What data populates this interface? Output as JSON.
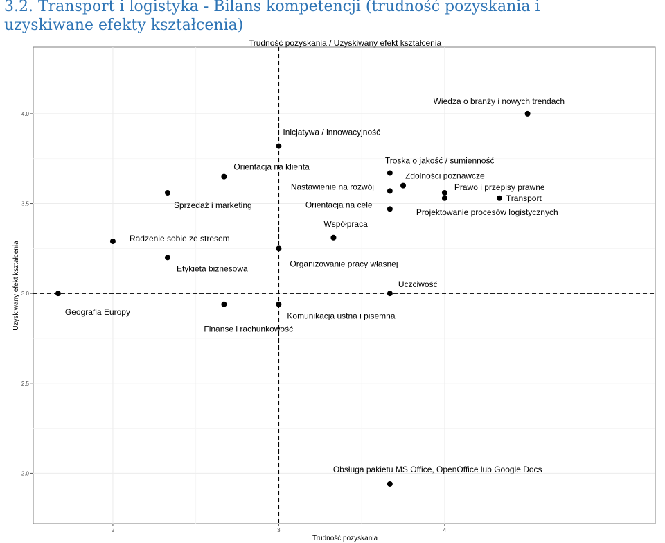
{
  "heading": {
    "line1": "3.2. Transport i logistyka - Bilans kompetencji  (trudność pozyskania i",
    "line2": "uzyskiwane efekty kształcenia)"
  },
  "chart_data": {
    "type": "scatter",
    "title": "Trudność pozyskania / Uzyskiwany efekt kształcenia",
    "xlabel": "Trudność pozyskania",
    "ylabel": "Uzyskiwany efekt kształcenia",
    "xlim": [
      1.52,
      5.27
    ],
    "ylim": [
      1.72,
      4.37
    ],
    "xticks": [
      2,
      3,
      4
    ],
    "xtick_labels": [
      "2",
      "3",
      "4"
    ],
    "yticks": [
      2.0,
      2.5,
      3.0,
      3.5,
      4.0
    ],
    "ytick_labels": [
      "2.0",
      "2.5",
      "3.0",
      "3.5",
      "4.0"
    ],
    "xref": 3.0,
    "yref": 3.0,
    "grid": true,
    "points": [
      {
        "label": "Wiedza o branży i nowych trendach",
        "x": 4.5,
        "y": 4.0
      },
      {
        "label": "Inicjatywa / innowacyjność",
        "x": 3.0,
        "y": 3.82
      },
      {
        "label": "Troska o jakość / sumienność",
        "x": 3.67,
        "y": 3.67
      },
      {
        "label": "Orientacja na klienta",
        "x": 2.67,
        "y": 3.65
      },
      {
        "label": "Zdolności poznawcze",
        "x": 3.75,
        "y": 3.6
      },
      {
        "label": "Nastawienie na rozwój",
        "x": 3.67,
        "y": 3.57
      },
      {
        "label": "Sprzedaż i marketing",
        "x": 2.33,
        "y": 3.56
      },
      {
        "label": "Prawo i przepisy prawne",
        "x": 4.0,
        "y": 3.56
      },
      {
        "label": "Transport",
        "x": 4.33,
        "y": 3.53
      },
      {
        "label": "Projektowanie procesów logistycznych",
        "x": 4.0,
        "y": 3.53
      },
      {
        "label": "Orientacja na cele",
        "x": 3.67,
        "y": 3.47
      },
      {
        "label": "Współpraca",
        "x": 3.33,
        "y": 3.31
      },
      {
        "label": "Radzenie sobie ze stresem",
        "x": 2.0,
        "y": 3.29
      },
      {
        "label": "Organizowanie pracy własnej",
        "x": 3.0,
        "y": 3.25
      },
      {
        "label": "Etykieta biznesowa",
        "x": 2.33,
        "y": 3.2
      },
      {
        "label": "Uczciwość",
        "x": 3.67,
        "y": 3.0
      },
      {
        "label": "Geografia Europy",
        "x": 1.67,
        "y": 3.0
      },
      {
        "label": "Finanse i rachunkowość",
        "x": 2.67,
        "y": 2.94
      },
      {
        "label": "Komunikacja ustna i pisemna",
        "x": 3.0,
        "y": 2.94
      },
      {
        "label": "Obsługa pakietu MS Office, OpenOffice lub Google Docs",
        "x": 3.67,
        "y": 1.94
      }
    ]
  }
}
